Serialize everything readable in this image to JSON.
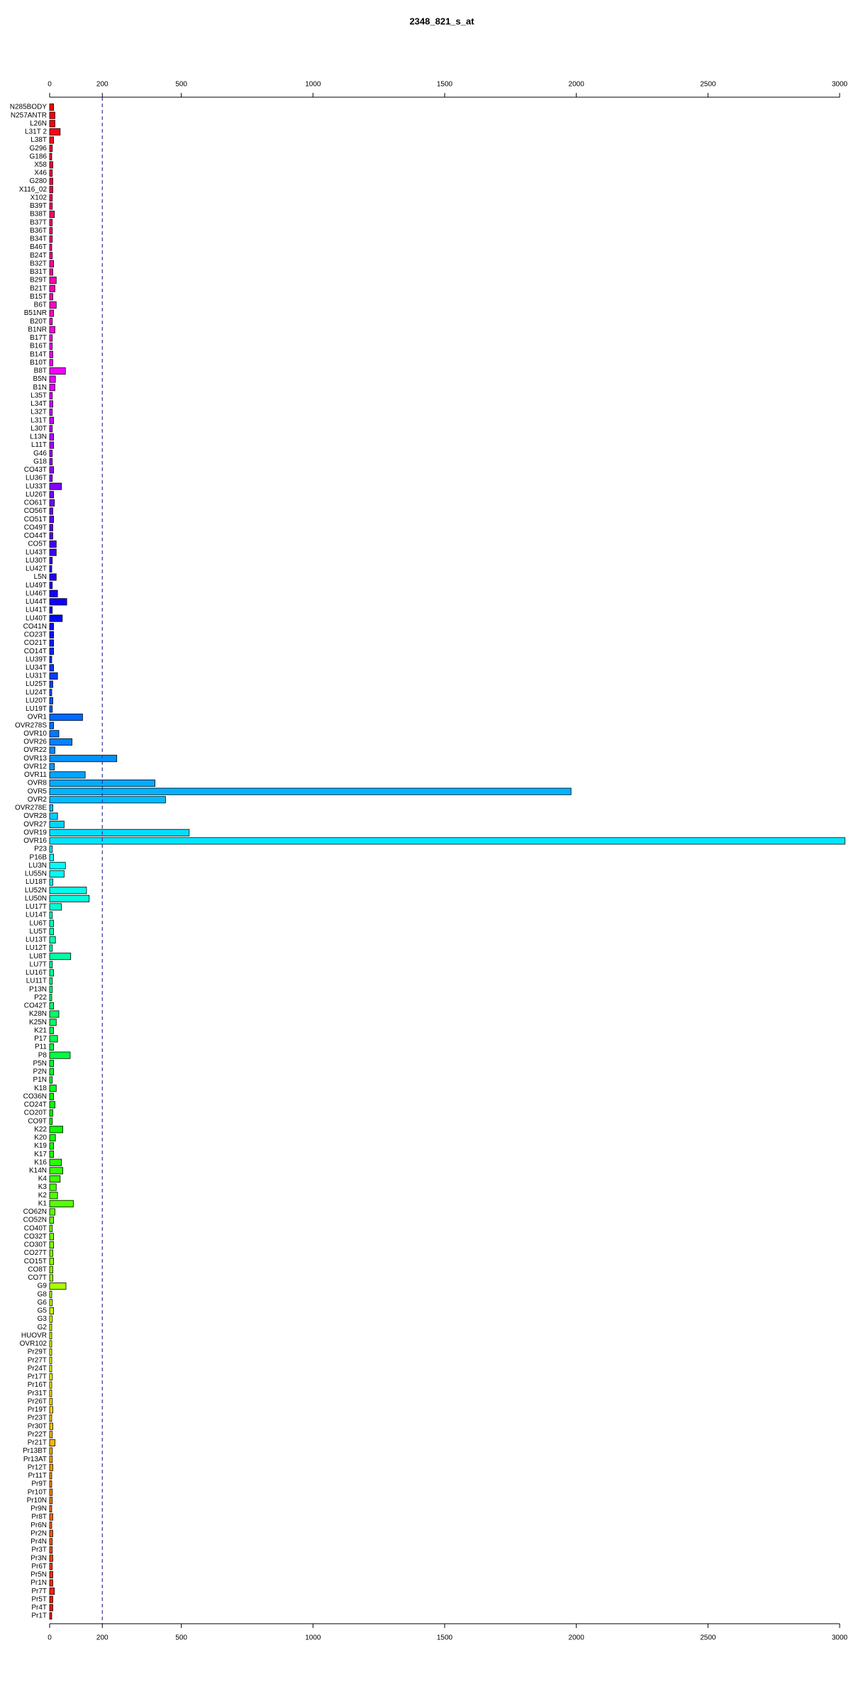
{
  "chart_data": {
    "type": "barh",
    "title": "2348_821_s_at",
    "categories": [
      "N285BODY",
      "N257ANTR",
      "L26N",
      "L31T 2",
      "L38T",
      "G296",
      "G186",
      "X58",
      "X46",
      "G280",
      "X116_02",
      "X102",
      "B39T",
      "B38T",
      "B37T",
      "B36T",
      "B34T",
      "B46T",
      "B24T",
      "B32T",
      "B31T",
      "B29T",
      "B21T",
      "B15T",
      "B6T",
      "B51NR",
      "B20T",
      "B1NR",
      "B17T",
      "B16T",
      "B14T",
      "B10T",
      "B8T",
      "B5N",
      "B1N",
      "L35T",
      "L34T",
      "L32T",
      "L31T",
      "L30T",
      "L13N",
      "L11T",
      "G46",
      "G18",
      "CO43T",
      "LU36T",
      "LU33T",
      "LU26T",
      "CO61T",
      "CO56T",
      "CO51T",
      "CO49T",
      "CO44T",
      "CO5T",
      "LU43T",
      "LU30T",
      "LU42T",
      "L5N",
      "LU49T",
      "LU46T",
      "LU44T",
      "LU41T",
      "LU40T",
      "CO41N",
      "CO23T",
      "CO21T",
      "CO14T",
      "LU39T",
      "LU34T",
      "LU31T",
      "LU25T",
      "LU24T",
      "LU20T",
      "LU19T",
      "OVR1",
      "OVR278S",
      "OVR10",
      "OVR26",
      "OVR22",
      "OVR13",
      "OVR12",
      "OVR11",
      "OVR8",
      "OVR5",
      "OVR2",
      "OVR278E",
      "OVR28",
      "OVR27",
      "OVR19",
      "OVR16",
      "P23",
      "P16B",
      "LU3N",
      "LU55N",
      "LU18T",
      "LU52N",
      "LU50N",
      "LU17T",
      "LU14T",
      "LU6T",
      "LU5T",
      "LU13T",
      "LU12T",
      "LU8T",
      "LU7T",
      "LU16T",
      "LU11T",
      "P13N",
      "P22",
      "CO42T",
      "K28N",
      "K25N",
      "K21",
      "P17",
      "P11",
      "P8",
      "P5N",
      "P2N",
      "P1N",
      "K18",
      "CO36N",
      "CO24T",
      "CO20T",
      "CO9T",
      "K22",
      "K20",
      "K19",
      "K17",
      "K16",
      "K14N",
      "K4",
      "K3",
      "K2",
      "K1",
      "CO62N",
      "CO52N",
      "CO40T",
      "CO32T",
      "CO30T",
      "CO27T",
      "CO15T",
      "CO8T",
      "CO7T",
      "G9",
      "G8",
      "G6",
      "G5",
      "G3",
      "G2",
      "HUOVR",
      "OVR102",
      "Pr29T",
      "Pr27T",
      "Pr24T",
      "Pr17T",
      "Pr16T",
      "Pr31T",
      "Pr26T",
      "Pr19T",
      "Pr23T",
      "Pr30T",
      "Pr22T",
      "Pr21T",
      "Pr13BT",
      "Pr13AT",
      "Pr12T",
      "Pr11T",
      "Pr9T",
      "Pr10T",
      "Pr10N",
      "Pr9N",
      "Pr8T",
      "Pr6N",
      "Pr2N",
      "Pr4N",
      "Pr3T",
      "Pr3N",
      "Pr6T",
      "Pr5N",
      "Pr1N",
      "Pr7T",
      "Pr5T",
      "Pr4T",
      "Pr1T"
    ],
    "values": [
      15,
      20,
      20,
      40,
      15,
      10,
      8,
      12,
      10,
      12,
      12,
      10,
      10,
      18,
      10,
      10,
      10,
      8,
      10,
      15,
      12,
      25,
      20,
      12,
      25,
      15,
      10,
      20,
      10,
      10,
      12,
      12,
      60,
      22,
      20,
      10,
      12,
      10,
      15,
      10,
      15,
      15,
      10,
      10,
      15,
      10,
      45,
      15,
      18,
      12,
      15,
      12,
      12,
      25,
      25,
      10,
      8,
      25,
      10,
      30,
      65,
      10,
      48,
      15,
      15,
      15,
      15,
      8,
      15,
      30,
      12,
      8,
      12,
      10,
      125,
      15,
      35,
      85,
      20,
      255,
      18,
      135,
      400,
      1980,
      440,
      12,
      30,
      55,
      530,
      3020,
      10,
      15,
      60,
      55,
      12,
      140,
      150,
      45,
      10,
      15,
      15,
      22,
      10,
      80,
      10,
      15,
      10,
      10,
      8,
      15,
      35,
      25,
      15,
      30,
      15,
      78,
      15,
      15,
      10,
      25,
      15,
      20,
      12,
      10,
      50,
      22,
      15,
      15,
      45,
      50,
      40,
      25,
      30,
      90,
      20,
      15,
      10,
      15,
      15,
      12,
      15,
      12,
      12,
      62,
      8,
      10,
      15,
      10,
      8,
      8,
      8,
      8,
      8,
      8,
      10,
      8,
      8,
      10,
      12,
      8,
      12,
      10,
      20,
      10,
      10,
      12,
      8,
      8,
      10,
      10,
      8,
      12,
      8,
      12,
      10,
      10,
      12,
      10,
      12,
      12,
      18,
      12,
      12,
      8
    ],
    "palette": "rainbow",
    "xlim": [
      0,
      3000
    ],
    "xticks": [
      0,
      200,
      500,
      1000,
      1500,
      2000,
      2500,
      3000
    ],
    "vline": 200
  }
}
